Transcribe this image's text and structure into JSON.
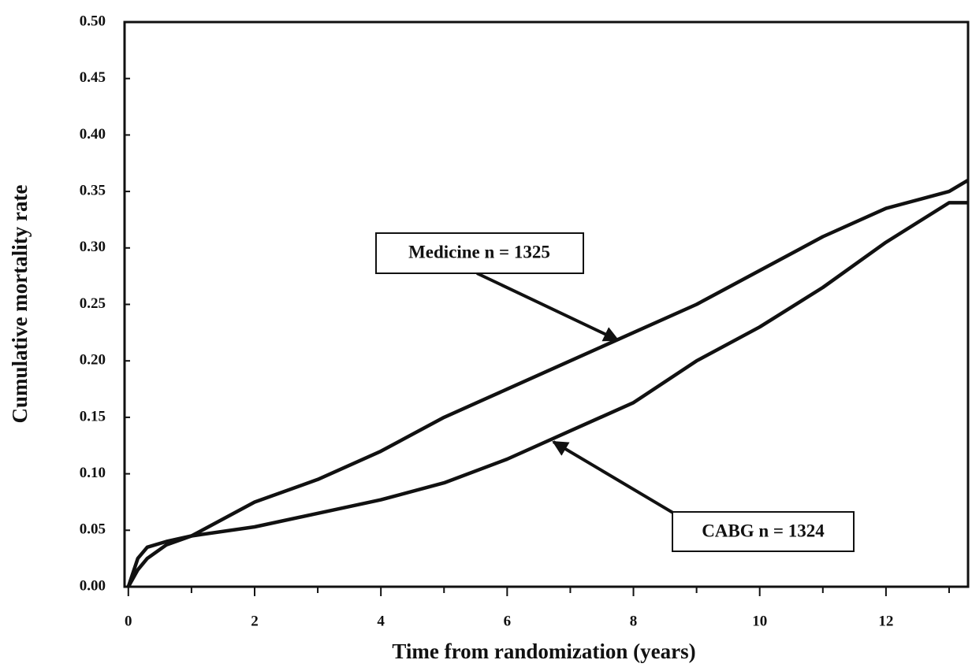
{
  "chart_data": {
    "type": "line",
    "x_label": "Time from randomization (years)",
    "y_label": "Cumulative mortality rate",
    "x": [
      0,
      0.15,
      0.3,
      0.6,
      1,
      2,
      3,
      4,
      5,
      6,
      7,
      8,
      9,
      10,
      11,
      12,
      13,
      13.3
    ],
    "series": [
      {
        "name": "Medicine",
        "color": "#111111",
        "values": [
          0,
          0.015,
          0.025,
          0.037,
          0.045,
          0.075,
          0.095,
          0.12,
          0.15,
          0.175,
          0.2,
          0.225,
          0.25,
          0.28,
          0.31,
          0.335,
          0.35,
          0.36
        ]
      },
      {
        "name": "CABG",
        "color": "#111111",
        "values": [
          0,
          0.025,
          0.035,
          0.04,
          0.045,
          0.053,
          0.065,
          0.077,
          0.092,
          0.113,
          0.138,
          0.163,
          0.2,
          0.23,
          0.265,
          0.305,
          0.34,
          0.34
        ]
      }
    ],
    "annotations": [
      "Medicine n = 1325",
      "CABG n = 1324"
    ],
    "xlim": [
      -0.06,
      13.3
    ],
    "ylim": [
      0,
      0.5
    ],
    "xticks": [
      0,
      2,
      4,
      6,
      8,
      10,
      12
    ],
    "xminor_ticks": [
      1,
      3,
      5,
      7,
      9,
      11,
      13
    ],
    "yticks": [
      {
        "value": 0,
        "label": "0.00"
      },
      {
        "value": 0.05,
        "label": "0.05"
      },
      {
        "value": 0.1,
        "label": "0.10"
      },
      {
        "value": 0.15,
        "label": "0.15"
      },
      {
        "value": 0.2,
        "label": "0.20"
      },
      {
        "value": 0.25,
        "label": "0.25"
      },
      {
        "value": 0.3,
        "label": "0.30"
      },
      {
        "value": 0.35,
        "label": "0.35"
      },
      {
        "value": 0.4,
        "label": "0.40"
      },
      {
        "value": 0.45,
        "label": "0.45"
      },
      {
        "value": 0.5,
        "label": "0.50"
      }
    ]
  }
}
